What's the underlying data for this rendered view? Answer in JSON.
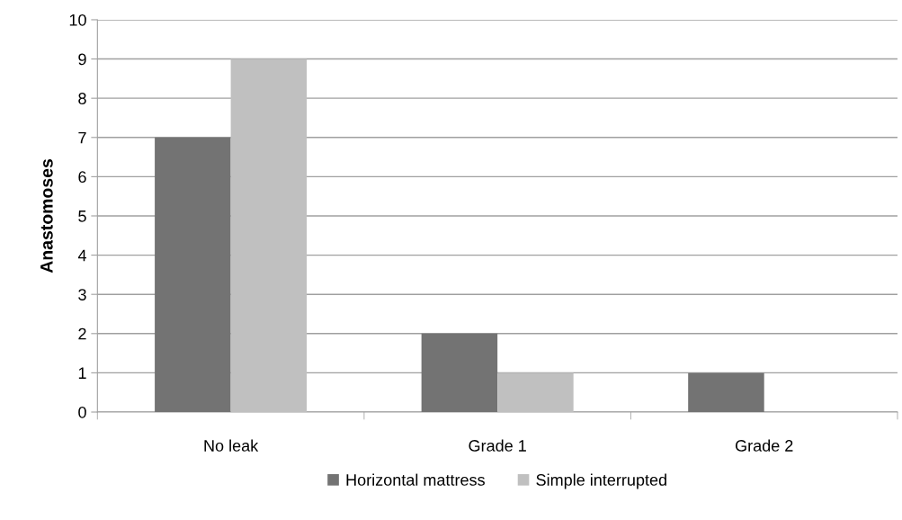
{
  "chart_data": {
    "type": "bar",
    "ylabel": "Anastomoses",
    "categories": [
      "No leak",
      "Grade 1",
      "Grade 2"
    ],
    "series": [
      {
        "name": "Horizontal mattress",
        "color": "#737373",
        "values": [
          7,
          2,
          1
        ]
      },
      {
        "name": "Simple interrupted",
        "color": "#c0c0c0",
        "values": [
          9,
          1,
          0
        ]
      }
    ],
    "ylim": [
      0,
      10
    ],
    "yticks": [
      0,
      1,
      2,
      3,
      4,
      5,
      6,
      7,
      8,
      9,
      10
    ],
    "grid": "y",
    "legend": "bottom"
  }
}
